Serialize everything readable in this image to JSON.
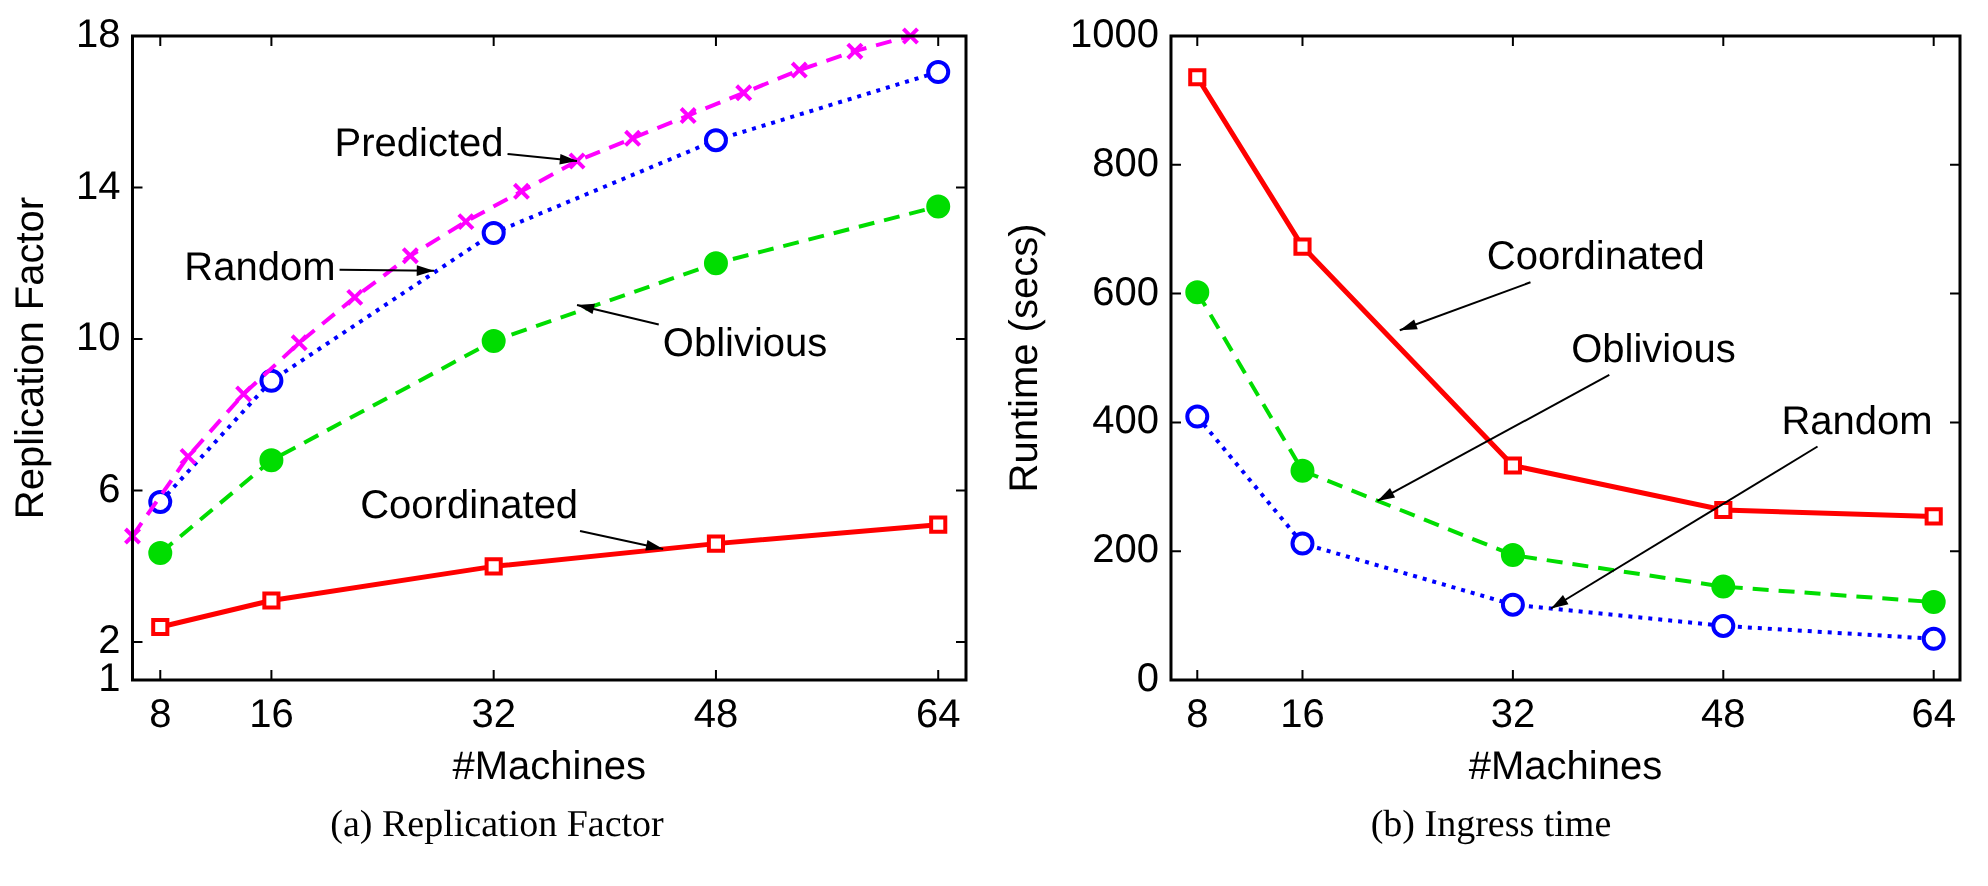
{
  "chart_data": [
    {
      "type": "line",
      "xlabel": "#Machines",
      "ylabel": "Replication Factor",
      "xlim": [
        6,
        66
      ],
      "xticks": [
        8,
        16,
        32,
        48,
        64
      ],
      "ylim": [
        1,
        18
      ],
      "yticks": [
        1,
        2,
        6,
        10,
        14,
        18
      ],
      "grid": false,
      "legend": false,
      "series": [
        {
          "color": "#ff00ff",
          "marker": "cross",
          "line_style": "dashed",
          "x": [
            6,
            10,
            14,
            18,
            22,
            26,
            30,
            34,
            38,
            42,
            46,
            50,
            54,
            58,
            62
          ],
          "values": [
            4.8,
            6.9,
            8.55,
            9.9,
            11.1,
            12.2,
            13.1,
            13.9,
            14.7,
            15.3,
            15.9,
            16.5,
            17.1,
            17.6,
            18
          ]
        },
        {
          "color": "#0000ff",
          "marker": "circle",
          "line_style": "dotted",
          "x": [
            8,
            16,
            32,
            48,
            64
          ],
          "values": [
            5.7,
            8.9,
            12.8,
            15.25,
            17.05
          ]
        },
        {
          "color": "#00dd00",
          "marker": "circle",
          "line_style": "dashed",
          "x": [
            8,
            16,
            32,
            48,
            64
          ],
          "values": [
            4.35,
            6.8,
            9.95,
            12.0,
            13.5
          ]
        },
        {
          "color": "#ff0000",
          "marker": "square",
          "line_style": "solid",
          "x": [
            8,
            16,
            32,
            48,
            64
          ],
          "values": [
            2.4,
            3.1,
            4.0,
            4.6,
            5.1
          ]
        }
      ],
      "annotations": [
        {
          "text": "Predicted",
          "x": 38,
          "y": 14.7
        },
        {
          "text": "Random",
          "x": 27.7,
          "y": 11.8
        },
        {
          "text": "Oblivious",
          "x": 38,
          "y": 10.9
        },
        {
          "text": "Coordinated",
          "x": 44.2,
          "y": 4.46
        },
        "(a) Replication Factor"
      ]
    },
    {
      "type": "line",
      "xlabel": "#Machines",
      "ylabel": "Runtime (secs)",
      "xlim": [
        6,
        66
      ],
      "xticks": [
        8,
        16,
        32,
        48,
        64
      ],
      "ylim": [
        0,
        1000
      ],
      "yticks": [
        0,
        200,
        400,
        600,
        800,
        1000
      ],
      "grid": false,
      "legend": false,
      "series": [
        {
          "color": "#ff0000",
          "marker": "square",
          "line_style": "solid",
          "x": [
            8,
            16,
            32,
            48,
            64
          ],
          "values": [
            936,
            673,
            333,
            264,
            254
          ]
        },
        {
          "color": "#00dd00",
          "marker": "circle",
          "line_style": "dashed",
          "x": [
            8,
            16,
            32,
            48,
            64
          ],
          "values": [
            602,
            325,
            194,
            145,
            121
          ]
        },
        {
          "color": "#0000ff",
          "marker": "circle",
          "line_style": "dotted",
          "x": [
            8,
            16,
            32,
            48,
            64
          ],
          "values": [
            409,
            212,
            117,
            84,
            64
          ]
        }
      ],
      "annotations": [
        {
          "text": "Coordinated",
          "x": 23.4,
          "y": 543
        },
        {
          "text": "Oblivious",
          "x": 21.7,
          "y": 278
        },
        {
          "text": "Random",
          "x": 34.9,
          "y": 111
        },
        "(b) Ingress time"
      ]
    }
  ]
}
